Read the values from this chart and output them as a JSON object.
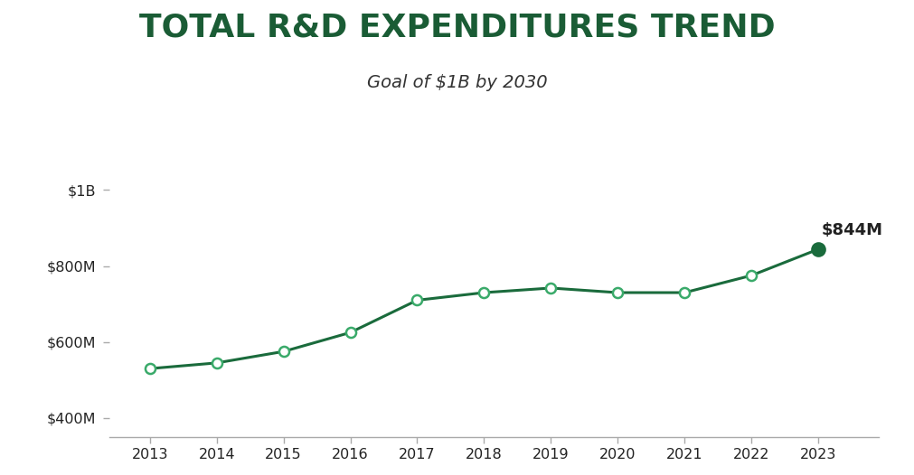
{
  "title": "TOTAL R&D EXPENDITURES TREND",
  "subtitle": "Goal of $1B by 2030",
  "years": [
    2013,
    2014,
    2015,
    2016,
    2017,
    2018,
    2019,
    2020,
    2021,
    2022,
    2023
  ],
  "values": [
    530,
    545,
    575,
    625,
    710,
    730,
    742,
    730,
    730,
    775,
    844
  ],
  "line_color": "#1a6b3c",
  "marker_color_open": "#3aaa6a",
  "marker_color_last": "#1a6b3c",
  "title_color": "#1a5c35",
  "subtitle_color": "#333333",
  "annotation_label": "$844M",
  "ylim_min": 350,
  "ylim_max": 1050,
  "yticks": [
    400,
    600,
    800,
    1000
  ],
  "ytick_labels": [
    "$400M",
    "$600M",
    "$800M",
    "$1B"
  ],
  "bg_color": "#ffffff",
  "tick_color": "#aaaaaa",
  "spine_color": "#aaaaaa",
  "text_color": "#222222"
}
